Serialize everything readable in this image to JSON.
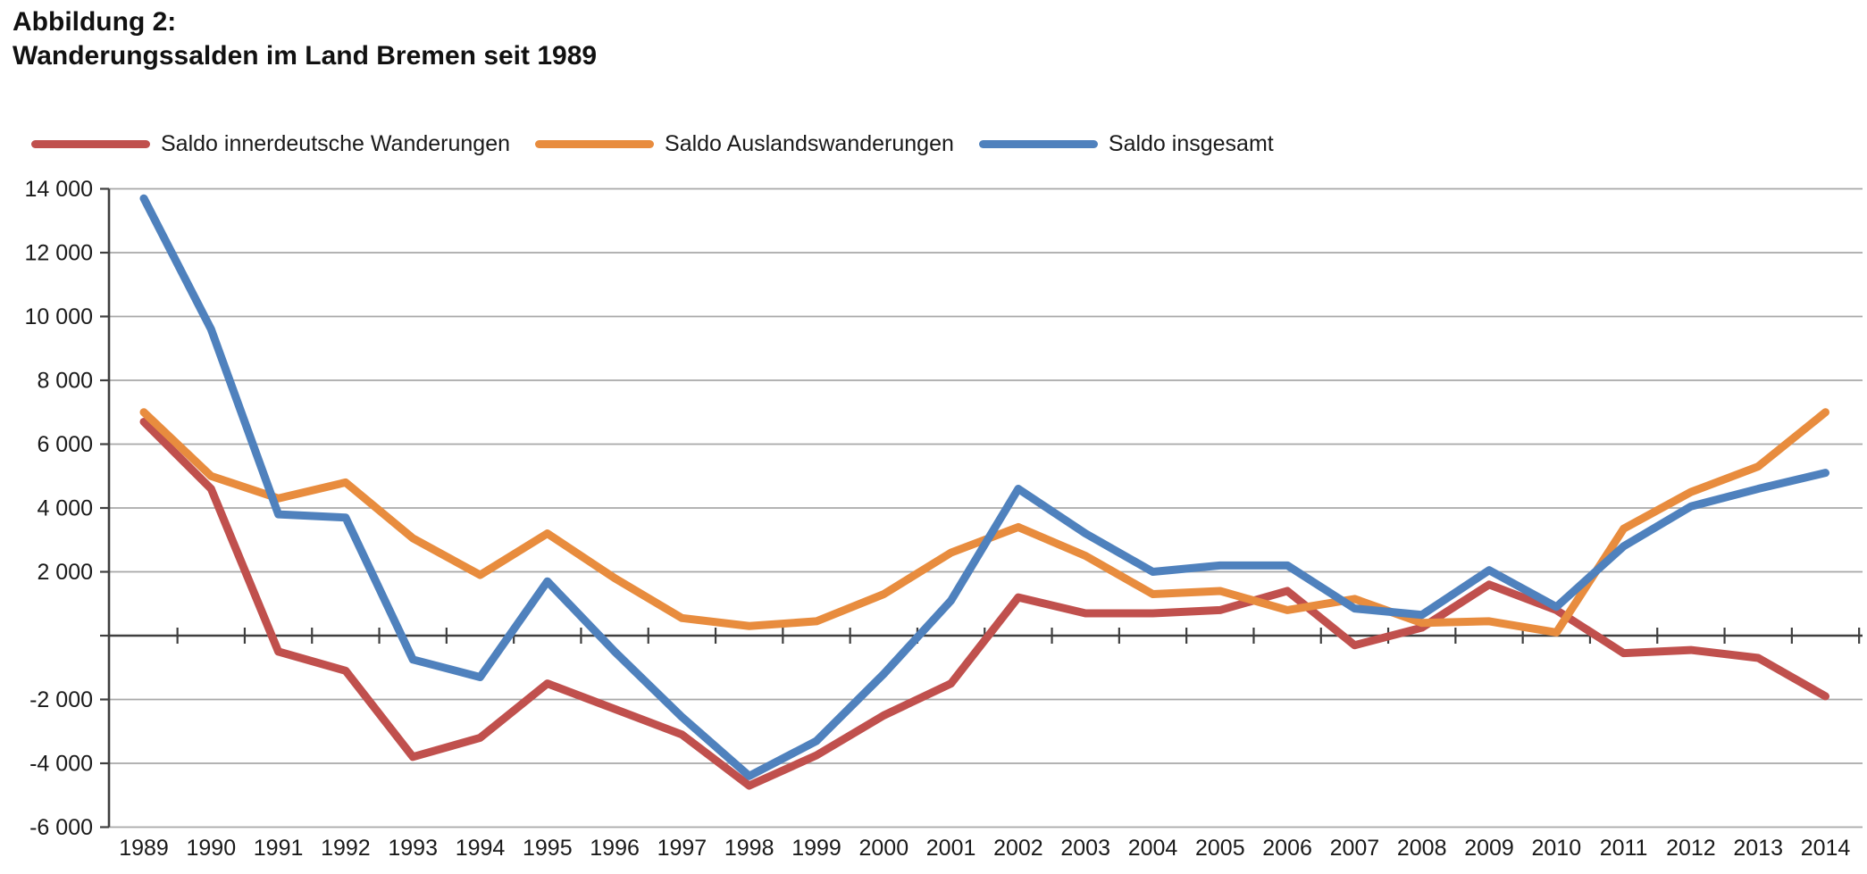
{
  "title": {
    "line1": "Abbildung 2:",
    "line2": "Wanderungssalden im Land Bremen seit 1989"
  },
  "colors": {
    "grid": "#a8a8a8",
    "axis": "#3f3f3f",
    "text": "#1a1a1a",
    "background": "#ffffff"
  },
  "y_axis": {
    "tick_labels": [
      {
        "value": 14000,
        "label": "14 000"
      },
      {
        "value": 12000,
        "label": "12 000"
      },
      {
        "value": 10000,
        "label": "10 000"
      },
      {
        "value": 8000,
        "label": "8 000"
      },
      {
        "value": 6000,
        "label": "6 000"
      },
      {
        "value": 4000,
        "label": "4 000"
      },
      {
        "value": 2000,
        "label": "2 000"
      },
      {
        "value": 0,
        "label": ""
      },
      {
        "value": -2000,
        "label": "-2 000"
      },
      {
        "value": -4000,
        "label": "-4 000"
      },
      {
        "value": -6000,
        "label": "-6 000"
      }
    ]
  },
  "chart_data": {
    "type": "line",
    "title": "Abbildung 2: Wanderungssalden im Land Bremen seit 1989",
    "categories": [
      "1989",
      "1990",
      "1991",
      "1992",
      "1993",
      "1994",
      "1995",
      "1996",
      "1997",
      "1998",
      "1999",
      "2000",
      "2001",
      "2002",
      "2003",
      "2004",
      "2005",
      "2006",
      "2007",
      "2008",
      "2009",
      "2010",
      "2011",
      "2012",
      "2013",
      "2014"
    ],
    "series": [
      {
        "name": "Saldo innerdeutsche Wanderungen",
        "color": "#c0504d",
        "values": [
          6700,
          4600,
          -500,
          -1100,
          -3800,
          -3200,
          -1500,
          -2300,
          -3100,
          -4700,
          -3750,
          -2500,
          -1500,
          1200,
          700,
          700,
          800,
          1400,
          -300,
          250,
          1600,
          800,
          -550,
          -450,
          -700,
          -1900
        ]
      },
      {
        "name": "Saldo Auslandswanderungen",
        "color": "#e88c3e",
        "values": [
          7000,
          5000,
          4300,
          4800,
          3050,
          1900,
          3200,
          1800,
          550,
          300,
          450,
          1300,
          2600,
          3400,
          2500,
          1300,
          1400,
          800,
          1150,
          400,
          450,
          100,
          3350,
          4500,
          5300,
          7000
        ]
      },
      {
        "name": "Saldo insgesamt",
        "color": "#4f81bd",
        "values": [
          13700,
          9600,
          3800,
          3700,
          -750,
          -1300,
          1700,
          -500,
          -2550,
          -4400,
          -3300,
          -1200,
          1100,
          4600,
          3200,
          2000,
          2200,
          2200,
          850,
          650,
          2050,
          900,
          2800,
          4050,
          4600,
          5100
        ]
      }
    ],
    "xlabel": "",
    "ylabel": "",
    "ylim": [
      -6000,
      14000
    ],
    "ytick_step": 2000,
    "zero_tick_label_hidden": true,
    "grid": true,
    "legend_position": "top-left"
  }
}
